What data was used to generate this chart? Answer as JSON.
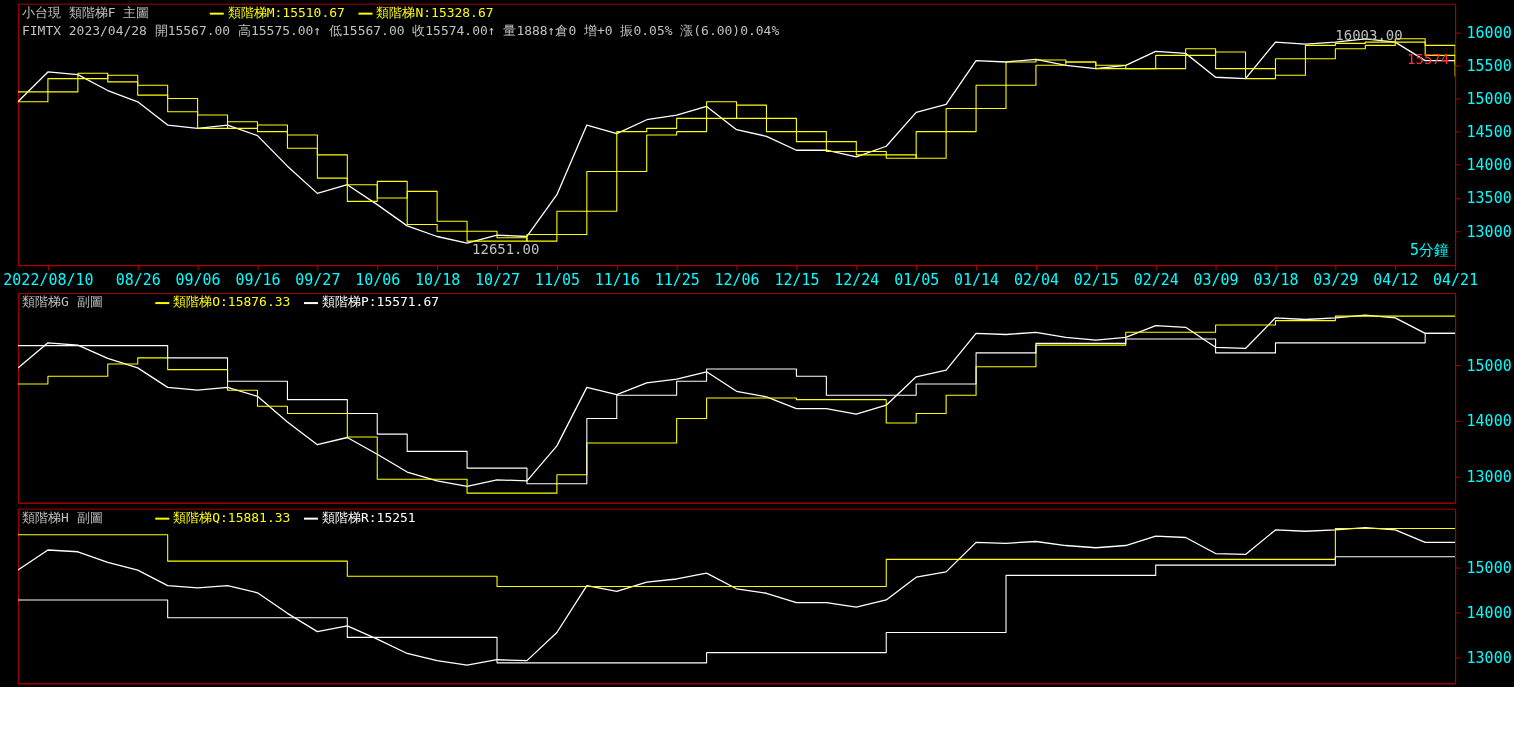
{
  "chart_data": [
    {
      "type": "line",
      "title": "小台現  類階梯F      主圖",
      "ylim": [
        12488,
        16429
      ],
      "yticks": [
        13000,
        13500,
        14000,
        14500,
        15000,
        15500,
        16000
      ],
      "categories": [
        null,
        "2022/08/10",
        null,
        null,
        "08/26",
        null,
        "09/06",
        null,
        "09/16",
        null,
        "09/27",
        null,
        "10/06",
        null,
        "10/18",
        null,
        "10/27",
        null,
        "11/05",
        null,
        "11/16",
        null,
        "11/25",
        null,
        "12/06",
        null,
        "12/15",
        null,
        "12/24",
        null,
        "01/05",
        null,
        "01/14",
        null,
        "02/04",
        null,
        "02/15",
        null,
        "02/24",
        null,
        "03/09",
        null,
        "03/18",
        null,
        "03/29",
        null,
        "04/12",
        null,
        "04/21"
      ],
      "grid": false,
      "legend": "top left",
      "marker": "none",
      "line_style": "solid",
      "annotations": [
        "FIMTX 2023/04/28 開15567.00 高15575.00↑ 低15567.00 收15574.00↑ 量1888↑倉0 增+0 振0.05% 漲(6.00)0.04%",
        "5分鐘",
        "16003.00",
        "12651.00",
        {
          "text": "15574",
          "y": 15574
        }
      ],
      "series": [
        {
          "type": "line",
          "color": "#ffffff",
          "values": [
            14950,
            15400,
            15360,
            15120,
            14950,
            14600,
            14550,
            14600,
            14440,
            13980,
            13570,
            13700,
            13400,
            13080,
            12920,
            12820,
            12940,
            12920,
            13550,
            14600,
            14470,
            14680,
            14750,
            14880,
            14530,
            14430,
            14220,
            14220,
            14120,
            14280,
            14790,
            14910,
            15570,
            15550,
            15590,
            15500,
            15450,
            15500,
            15710,
            15680,
            15320,
            15300,
            15850,
            15820,
            15850,
            15900,
            15850,
            15570,
            15570
          ]
        },
        {
          "type": "step",
          "name": "類階梯M:15510.67",
          "color": "#ffff00",
          "values": [
            15100,
            15300,
            15380,
            15250,
            15050,
            14800,
            14550,
            14650,
            14500,
            14250,
            13800,
            13450,
            13750,
            13100,
            13000,
            12850,
            12850,
            12950,
            13300,
            13900,
            14500,
            14550,
            14700,
            14950,
            14700,
            14500,
            14350,
            14200,
            14150,
            14100,
            14500,
            14850,
            15200,
            15550,
            15580,
            15550,
            15450,
            15450,
            15650,
            15750,
            15450,
            15300,
            15600,
            15800,
            15830,
            15850,
            15900,
            15650,
            15510
          ]
        },
        {
          "type": "step",
          "name": "類階梯N:15328.67",
          "color": "#ffff00",
          "values": [
            14950,
            15100,
            15300,
            15350,
            15200,
            15000,
            14750,
            14550,
            14600,
            14450,
            14150,
            13700,
            13500,
            13600,
            13150,
            13000,
            12900,
            12850,
            12950,
            13300,
            13900,
            14450,
            14500,
            14700,
            14900,
            14700,
            14500,
            14350,
            14200,
            14150,
            14100,
            14500,
            14850,
            15200,
            15500,
            15550,
            15500,
            15450,
            15450,
            15650,
            15700,
            15450,
            15350,
            15600,
            15750,
            15800,
            15850,
            15800,
            15330
          ]
        }
      ]
    },
    {
      "type": "line",
      "title": "類階梯G      副圖",
      "ylim": [
        12529,
        16294
      ],
      "yticks": [
        13000,
        14000,
        15000
      ],
      "tick_labels": "y",
      "grid": false,
      "legend": "top left",
      "marker": "none",
      "line_style": "solid",
      "categories": [
        null,
        null,
        null,
        null,
        null,
        null,
        null,
        null,
        null,
        null,
        null,
        null,
        null,
        null,
        null,
        null,
        null,
        null,
        null,
        null,
        null,
        null,
        null,
        null,
        null,
        null,
        null,
        null,
        null,
        null,
        null,
        null,
        null,
        null,
        null,
        null,
        null,
        null,
        null,
        null,
        null,
        null,
        null,
        null,
        null,
        null,
        null,
        null,
        null
      ],
      "series": [
        {
          "type": "line",
          "color": "#ffffff",
          "values": [
            14950,
            15400,
            15360,
            15120,
            14950,
            14600,
            14550,
            14600,
            14440,
            13980,
            13570,
            13700,
            13400,
            13080,
            12920,
            12820,
            12940,
            12920,
            13550,
            14600,
            14470,
            14680,
            14750,
            14880,
            14530,
            14430,
            14220,
            14220,
            14120,
            14280,
            14790,
            14910,
            15570,
            15550,
            15590,
            15500,
            15450,
            15500,
            15710,
            15680,
            15320,
            15300,
            15850,
            15820,
            15850,
            15900,
            15850,
            15570,
            15570
          ]
        },
        {
          "type": "step",
          "name": "類階梯O:15876.33",
          "color": "#ffff00",
          "values": [
            14660,
            14800,
            14800,
            15020,
            15130,
            14920,
            14920,
            14550,
            14260,
            14130,
            14130,
            13710,
            12950,
            12950,
            12950,
            12700,
            12700,
            12700,
            13030,
            13600,
            13600,
            13600,
            14040,
            14410,
            14410,
            14410,
            14380,
            14380,
            14380,
            13960,
            14130,
            14460,
            14970,
            14970,
            15360,
            15360,
            15360,
            15590,
            15590,
            15590,
            15720,
            15720,
            15800,
            15800,
            15880,
            15880,
            15880,
            15880,
            15880
          ]
        },
        {
          "type": "step",
          "name": "類階梯P:15571.67",
          "color": "#ffffff",
          "values": [
            15350,
            15350,
            15350,
            15350,
            15350,
            15130,
            15130,
            14710,
            14710,
            14380,
            14380,
            14130,
            13760,
            13450,
            13450,
            13150,
            13150,
            12870,
            12870,
            14040,
            14460,
            14460,
            14710,
            14930,
            14930,
            14930,
            14800,
            14460,
            14460,
            14460,
            14660,
            14660,
            15220,
            15220,
            15390,
            15390,
            15390,
            15470,
            15470,
            15470,
            15220,
            15220,
            15400,
            15400,
            15400,
            15400,
            15400,
            15570,
            15570
          ]
        }
      ]
    },
    {
      "type": "line",
      "title": "類階梯H      副圖",
      "ylim": [
        12411,
        16326
      ],
      "yticks": [
        13000,
        14000,
        15000
      ],
      "tick_labels": "y",
      "grid": false,
      "legend": "top left",
      "marker": "none",
      "line_style": "solid",
      "categories": [
        null,
        null,
        null,
        null,
        null,
        null,
        null,
        null,
        null,
        null,
        null,
        null,
        null,
        null,
        null,
        null,
        null,
        null,
        null,
        null,
        null,
        null,
        null,
        null,
        null,
        null,
        null,
        null,
        null,
        null,
        null,
        null,
        null,
        null,
        null,
        null,
        null,
        null,
        null,
        null,
        null,
        null,
        null,
        null,
        null,
        null,
        null,
        null,
        null
      ],
      "series": [
        {
          "type": "line",
          "color": "#ffffff",
          "values": [
            14950,
            15400,
            15360,
            15120,
            14950,
            14600,
            14550,
            14600,
            14440,
            13980,
            13570,
            13700,
            13400,
            13080,
            12920,
            12820,
            12940,
            12920,
            13550,
            14600,
            14470,
            14680,
            14750,
            14880,
            14530,
            14430,
            14220,
            14220,
            14120,
            14280,
            14790,
            14910,
            15570,
            15550,
            15590,
            15500,
            15450,
            15500,
            15710,
            15680,
            15320,
            15300,
            15850,
            15820,
            15850,
            15900,
            15850,
            15570,
            15570
          ]
        },
        {
          "type": "step",
          "name": "類階梯Q:15881.33",
          "color": "#ffff00",
          "values": [
            15740,
            15740,
            15740,
            15740,
            15740,
            15150,
            15150,
            15150,
            15150,
            15150,
            15150,
            14810,
            14810,
            14810,
            14810,
            14810,
            14580,
            14580,
            14580,
            14580,
            14580,
            14580,
            14580,
            14580,
            14580,
            14580,
            14580,
            14580,
            14580,
            15190,
            15190,
            15190,
            15190,
            15190,
            15190,
            15190,
            15190,
            15190,
            15190,
            15190,
            15190,
            15190,
            15190,
            15190,
            15880,
            15880,
            15880,
            15880,
            15880
          ]
        },
        {
          "type": "step",
          "name": "類階梯R:15251",
          "color": "#ffffff",
          "values": [
            14280,
            14280,
            14280,
            14280,
            14280,
            13880,
            13880,
            13880,
            13880,
            13880,
            13880,
            13440,
            13440,
            13440,
            13440,
            13440,
            12870,
            12870,
            12870,
            12870,
            12870,
            12870,
            12870,
            13100,
            13100,
            13100,
            13100,
            13100,
            13100,
            13550,
            13550,
            13550,
            13550,
            14830,
            14830,
            14830,
            14830,
            14830,
            15060,
            15060,
            15060,
            15060,
            15060,
            15060,
            15250,
            15250,
            15250,
            15250,
            15250
          ]
        }
      ]
    }
  ]
}
